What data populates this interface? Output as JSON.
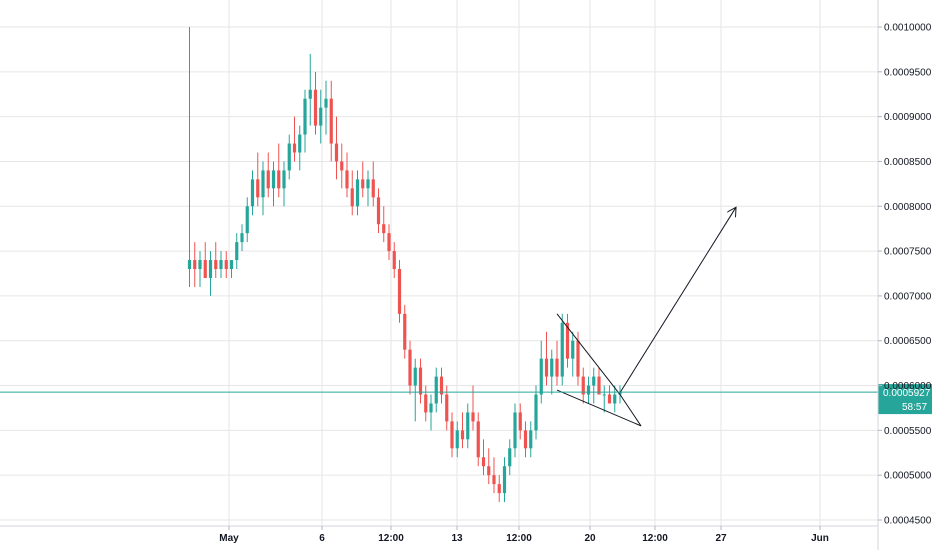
{
  "chart_data": {
    "type": "candlestick",
    "symbol": "",
    "ylim": [
      0.00044,
      0.00104
    ],
    "y_ticks": [
      "0.0010000",
      "0.0009500",
      "0.0009000",
      "0.0008500",
      "0.0008000",
      "0.0007500",
      "0.0007000",
      "0.0006500",
      "0.0006000",
      "0.0005500",
      "0.0005000",
      "0.0004500"
    ],
    "x_ticks": [
      "May",
      "6",
      "12:00",
      "13",
      "12:00",
      "20",
      "12:00",
      "27",
      "Jun"
    ],
    "current_price": "0.0005927",
    "countdown": "58:57",
    "colors": {
      "up": "#26a69a",
      "down": "#ef5350",
      "price_line": "#26a69a",
      "grid": "#e6e6e6",
      "drawing": "#131722"
    },
    "grid": true,
    "candles": [
      [
        0.00073,
        0.001,
        0.00071,
        0.00074
      ],
      [
        0.00074,
        0.00076,
        0.00071,
        0.00073
      ],
      [
        0.00073,
        0.00075,
        0.00071,
        0.00074
      ],
      [
        0.00074,
        0.00076,
        0.00072,
        0.00072
      ],
      [
        0.00072,
        0.00075,
        0.0007,
        0.00074
      ],
      [
        0.00074,
        0.00076,
        0.00072,
        0.00073
      ],
      [
        0.00073,
        0.00075,
        0.00072,
        0.00074
      ],
      [
        0.00074,
        0.00075,
        0.00072,
        0.00073
      ],
      [
        0.00073,
        0.00074,
        0.00072,
        0.00074
      ],
      [
        0.00074,
        0.00077,
        0.00073,
        0.00076
      ],
      [
        0.00076,
        0.00078,
        0.00075,
        0.00077
      ],
      [
        0.00077,
        0.00081,
        0.00076,
        0.0008
      ],
      [
        0.0008,
        0.00084,
        0.00079,
        0.00083
      ],
      [
        0.00083,
        0.00086,
        0.0008,
        0.00081
      ],
      [
        0.00081,
        0.00085,
        0.00079,
        0.00084
      ],
      [
        0.00084,
        0.00086,
        0.00081,
        0.00082
      ],
      [
        0.00082,
        0.00085,
        0.0008,
        0.00084
      ],
      [
        0.00084,
        0.00087,
        0.00081,
        0.00082
      ],
      [
        0.00082,
        0.00085,
        0.0008,
        0.00084
      ],
      [
        0.00084,
        0.00088,
        0.00083,
        0.00087
      ],
      [
        0.00087,
        0.0009,
        0.00085,
        0.00086
      ],
      [
        0.00086,
        0.00089,
        0.00084,
        0.00088
      ],
      [
        0.00088,
        0.00093,
        0.00086,
        0.00092
      ],
      [
        0.00092,
        0.00097,
        0.00089,
        0.00093
      ],
      [
        0.00093,
        0.00095,
        0.00088,
        0.00089
      ],
      [
        0.00089,
        0.00093,
        0.00087,
        0.00091
      ],
      [
        0.00091,
        0.00094,
        0.00088,
        0.00092
      ],
      [
        0.00092,
        0.00094,
        0.00085,
        0.00087
      ],
      [
        0.00087,
        0.0009,
        0.00083,
        0.00085
      ],
      [
        0.00085,
        0.00087,
        0.00082,
        0.00084
      ],
      [
        0.00084,
        0.00086,
        0.00081,
        0.00082
      ],
      [
        0.00082,
        0.00084,
        0.00079,
        0.0008
      ],
      [
        0.0008,
        0.00084,
        0.00079,
        0.00083
      ],
      [
        0.00083,
        0.00085,
        0.00081,
        0.00082
      ],
      [
        0.00082,
        0.00084,
        0.0008,
        0.00083
      ],
      [
        0.00083,
        0.00085,
        0.0008,
        0.00081
      ],
      [
        0.00081,
        0.00082,
        0.00077,
        0.00078
      ],
      [
        0.00078,
        0.0008,
        0.00076,
        0.00077
      ],
      [
        0.00077,
        0.00078,
        0.00074,
        0.00075
      ],
      [
        0.00075,
        0.00076,
        0.00072,
        0.00073
      ],
      [
        0.00073,
        0.00074,
        0.00067,
        0.00068
      ],
      [
        0.00068,
        0.00069,
        0.00063,
        0.00064
      ],
      [
        0.00064,
        0.00065,
        0.00059,
        0.0006
      ],
      [
        0.0006,
        0.00063,
        0.00056,
        0.00062
      ],
      [
        0.00062,
        0.00063,
        0.00058,
        0.00059
      ],
      [
        0.00059,
        0.0006,
        0.00056,
        0.00057
      ],
      [
        0.00057,
        0.00059,
        0.00055,
        0.00058
      ],
      [
        0.00058,
        0.00062,
        0.00057,
        0.00061
      ],
      [
        0.00061,
        0.00062,
        0.00058,
        0.00059
      ],
      [
        0.00059,
        0.0006,
        0.00055,
        0.00056
      ],
      [
        0.00056,
        0.00057,
        0.00052,
        0.00053
      ],
      [
        0.00053,
        0.00056,
        0.00052,
        0.00055
      ],
      [
        0.00055,
        0.00057,
        0.00053,
        0.00054
      ],
      [
        0.00054,
        0.00058,
        0.00053,
        0.00057
      ],
      [
        0.00057,
        0.0006,
        0.00055,
        0.00056
      ],
      [
        0.00056,
        0.00057,
        0.00051,
        0.00052
      ],
      [
        0.00052,
        0.00054,
        0.0005,
        0.00051
      ],
      [
        0.00051,
        0.00053,
        0.00049,
        0.0005
      ],
      [
        0.0005,
        0.00052,
        0.00048,
        0.00049
      ],
      [
        0.00049,
        0.0005,
        0.00047,
        0.00048
      ],
      [
        0.00048,
        0.00052,
        0.00047,
        0.00051
      ],
      [
        0.00051,
        0.00054,
        0.0005,
        0.00053
      ],
      [
        0.00053,
        0.00058,
        0.00052,
        0.00057
      ],
      [
        0.00057,
        0.00058,
        0.00054,
        0.00055
      ],
      [
        0.00055,
        0.00056,
        0.00052,
        0.00053
      ],
      [
        0.00053,
        0.00056,
        0.00052,
        0.00055
      ],
      [
        0.00055,
        0.0006,
        0.00054,
        0.00059
      ],
      [
        0.00059,
        0.00065,
        0.00058,
        0.00063
      ],
      [
        0.00063,
        0.00066,
        0.0006,
        0.00061
      ],
      [
        0.00061,
        0.00064,
        0.00059,
        0.00063
      ],
      [
        0.00063,
        0.00065,
        0.0006,
        0.00061
      ],
      [
        0.00061,
        0.00068,
        0.0006,
        0.00067
      ],
      [
        0.00067,
        0.00068,
        0.00062,
        0.00063
      ],
      [
        0.00063,
        0.00066,
        0.00061,
        0.00065
      ],
      [
        0.00065,
        0.00066,
        0.0006,
        0.00061
      ],
      [
        0.00061,
        0.00062,
        0.00058,
        0.00059
      ],
      [
        0.00059,
        0.00061,
        0.00058,
        0.0006
      ],
      [
        0.0006,
        0.00062,
        0.00058,
        0.00061
      ],
      [
        0.00061,
        0.00062,
        0.00059,
        0.00059
      ],
      [
        0.00059,
        0.0006,
        0.00057,
        0.00059
      ],
      [
        0.00059,
        0.0006,
        0.00058,
        0.00058
      ],
      [
        0.00058,
        0.0006,
        0.00057,
        0.00059
      ],
      [
        0.00059,
        0.0006,
        0.00058,
        0.000593
      ]
    ],
    "drawings": [
      {
        "name": "triangle-upper-line",
        "points": [
          [
            70,
            0.00068
          ],
          [
            82,
            0.00059
          ]
        ]
      },
      {
        "name": "triangle-lower-line",
        "points": [
          [
            70,
            0.000595
          ],
          [
            86,
            0.000555
          ]
        ]
      },
      {
        "name": "triangle-right-edge",
        "points": [
          [
            82,
            0.00059
          ],
          [
            86,
            0.000555
          ]
        ]
      },
      {
        "name": "target-arrow",
        "points": [
          [
            82,
            0.000592
          ],
          [
            104,
            0.000798
          ]
        ],
        "arrow": true
      }
    ]
  }
}
